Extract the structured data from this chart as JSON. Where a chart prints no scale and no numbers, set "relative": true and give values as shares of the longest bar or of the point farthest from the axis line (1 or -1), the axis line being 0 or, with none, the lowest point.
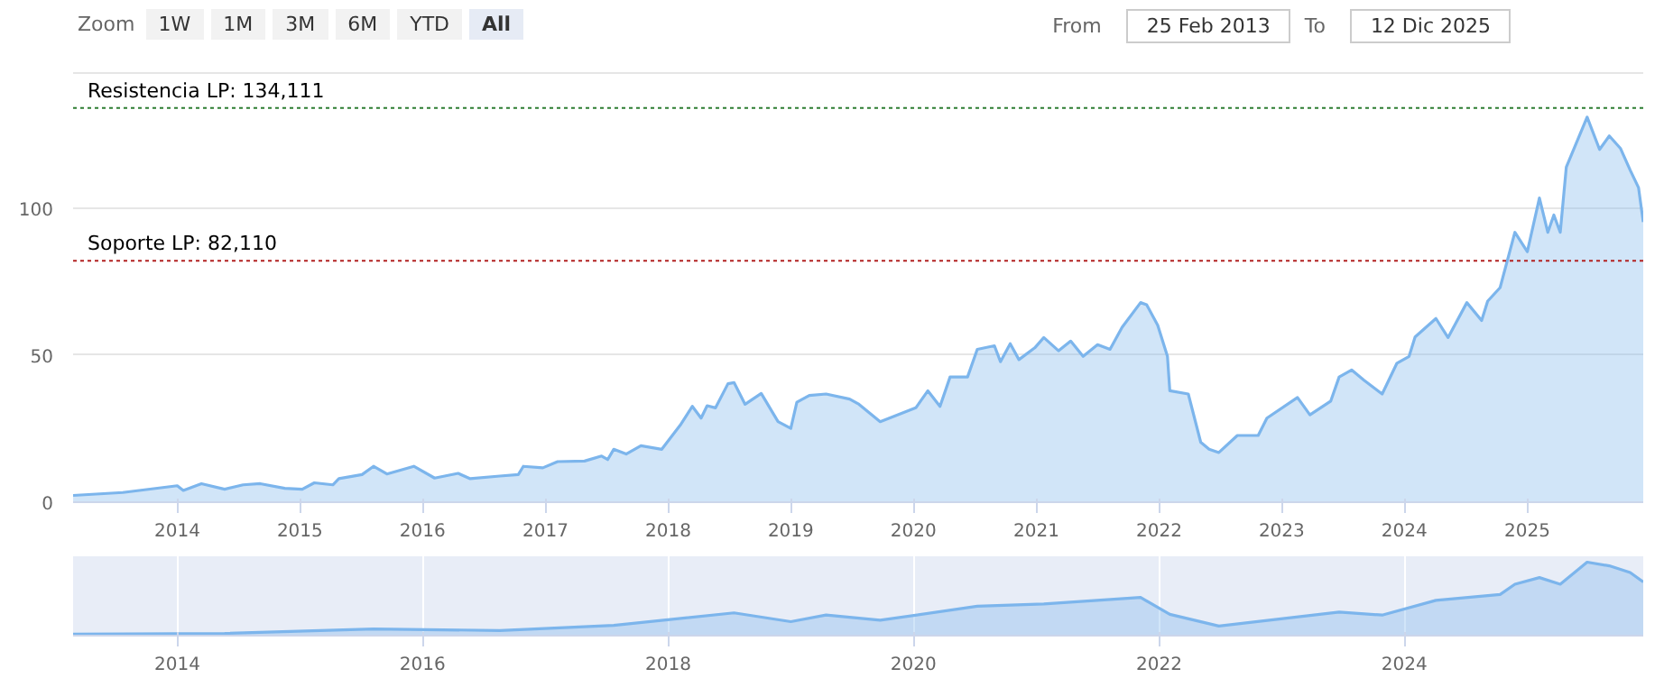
{
  "chart_data": [
    {
      "type": "area",
      "annotations": [
        "Zoom",
        "1W",
        "1M",
        "3M",
        "6M",
        "YTD",
        "All",
        "From",
        "25 Feb 2013",
        "To",
        "12 Dic 2025"
      ],
      "x": [
        "2013-02-25",
        "2013-07-23",
        "2014-01-01",
        "2014-01-19",
        "2014-03-14",
        "2014-05-22",
        "2014-07-16",
        "2014-09-05",
        "2014-11-17",
        "2015-01-08",
        "2015-02-13",
        "2015-04-09",
        "2015-04-27",
        "2015-07-05",
        "2015-08-08",
        "2015-09-17",
        "2015-12-06",
        "2016-02-06",
        "2016-04-16",
        "2016-05-22",
        "2016-08-18",
        "2016-10-12",
        "2016-10-27",
        "2016-12-24",
        "2017-02-06",
        "2017-04-27",
        "2017-06-17",
        "2017-07-05",
        "2017-07-23",
        "2017-08-29",
        "2017-10-12",
        "2017-12-13",
        "2018-02-06",
        "2018-03-14",
        "2018-04-09",
        "2018-04-27",
        "2018-05-22",
        "2018-06-28",
        "2018-07-16",
        "2018-08-18",
        "2018-10-05",
        "2018-11-24",
        "2019-01-01",
        "2019-01-19",
        "2019-02-25",
        "2019-04-16",
        "2019-06-25",
        "2019-07-23",
        "2019-09-24",
        "2020-01-08",
        "2020-02-13",
        "2020-03-20",
        "2020-04-19",
        "2020-06-10",
        "2020-07-09",
        "2020-08-29",
        "2020-09-16",
        "2020-10-15",
        "2020-11-10",
        "2020-12-27",
        "2021-01-23",
        "2021-03-08",
        "2021-04-13",
        "2021-05-20",
        "2021-07-02",
        "2021-08-08",
        "2021-09-13",
        "2021-11-07",
        "2021-11-25",
        "2021-12-28",
        "2022-01-26",
        "2022-02-02",
        "2022-03-29",
        "2022-05-05",
        "2022-05-30",
        "2022-06-28",
        "2022-08-22",
        "2022-10-23",
        "2022-11-18",
        "2023-02-17",
        "2023-03-26",
        "2023-05-27",
        "2023-06-21",
        "2023-07-28",
        "2023-09-03",
        "2023-10-27",
        "2023-12-10",
        "2024-01-15",
        "2024-02-02",
        "2024-04-04",
        "2024-05-10",
        "2024-07-05",
        "2024-08-18",
        "2024-09-05",
        "2024-10-12",
        "2024-11-25",
        "2025-01-01",
        "2025-02-06",
        "2025-03-03",
        "2025-03-21",
        "2025-04-09",
        "2025-04-27",
        "2025-06-28",
        "2025-08-04",
        "2025-09-02",
        "2025-10-05",
        "2025-11-03",
        "2025-11-28",
        "2025-12-12"
      ],
      "series": [
        {
          "color": "#7cb5ec",
          "values": [
            2.3,
            3.3,
            5.6,
            4,
            6.3,
            4.4,
            5.9,
            6.3,
            4.7,
            4.4,
            6.6,
            5.9,
            8,
            9.4,
            12.2,
            9.6,
            12.2,
            8.2,
            9.8,
            8,
            8.9,
            9.4,
            12.2,
            11.7,
            13.8,
            14,
            15.7,
            14.5,
            18,
            16.4,
            19.2,
            18,
            26.2,
            32.6,
            28.6,
            32.8,
            32.1,
            40.3,
            40.7,
            33.3,
            37,
            27.4,
            25.1,
            34,
            36.3,
            36.8,
            35.1,
            33.3,
            27.4,
            32.1,
            37.9,
            32.6,
            42.6,
            42.6,
            52,
            53.2,
            47.8,
            53.9,
            48.5,
            52.5,
            56,
            51.5,
            54.8,
            49.6,
            53.6,
            52,
            59.5,
            67.9,
            67.2,
            60.2,
            49.6,
            37.9,
            36.8,
            20.4,
            18,
            16.9,
            22.7,
            22.7,
            28.6,
            35.6,
            29.7,
            34.4,
            42.6,
            45,
            41.5,
            36.8,
            47.3,
            49.6,
            56.2,
            62.5,
            56,
            67.9,
            61.8,
            68.4,
            73,
            91.8,
            85.2,
            103.5,
            91.8,
            97.7,
            91.8,
            114,
            131,
            120,
            124.6,
            120.4,
            113,
            107,
            95.3
          ]
        }
      ],
      "xlim": [
        "2013-02-25",
        "2025-12-12"
      ],
      "ylim": [
        0,
        146
      ],
      "yticks": [
        0,
        50,
        100
      ],
      "xticks": [
        {
          "value": "2014-01-01",
          "label": "2014"
        },
        {
          "value": "2015-01-01",
          "label": "2015"
        },
        {
          "value": "2016-01-01",
          "label": "2016"
        },
        {
          "value": "2017-01-01",
          "label": "2017"
        },
        {
          "value": "2018-01-01",
          "label": "2018"
        },
        {
          "value": "2019-01-01",
          "label": "2019"
        },
        {
          "value": "2020-01-01",
          "label": "2020"
        },
        {
          "value": "2021-01-01",
          "label": "2021"
        },
        {
          "value": "2022-01-01",
          "label": "2022"
        },
        {
          "value": "2023-01-01",
          "label": "2023"
        },
        {
          "value": "2024-01-01",
          "label": "2024"
        },
        {
          "value": "2025-01-01",
          "label": "2025"
        }
      ],
      "ref_lines": [
        {
          "axis": "y",
          "value": 134.111,
          "label": "Resistencia LP: 134,111",
          "color": "#2e7d32",
          "line_style": "dashed"
        },
        {
          "axis": "y",
          "value": 82.11,
          "label": "Soporte LP: 82,110",
          "color": "#b22222",
          "line_style": "dashed"
        }
      ],
      "grid": "y"
    },
    {
      "type": "area",
      "relative": true,
      "tick_labels": "x",
      "x": [
        "2013-02-25",
        "2014-05-22",
        "2015-08-08",
        "2016-08-18",
        "2017-07-23",
        "2018-07-16",
        "2019-01-01",
        "2019-04-16",
        "2019-09-24",
        "2020-07-09",
        "2021-01-23",
        "2021-11-07",
        "2022-02-02",
        "2022-06-28",
        "2023-06-21",
        "2023-10-27",
        "2024-04-04",
        "2024-10-12",
        "2024-11-25",
        "2025-02-06",
        "2025-04-09",
        "2025-06-28",
        "2025-09-02",
        "2025-11-03",
        "2025-12-12"
      ],
      "series": [
        {
          "color": "#7cb5ec",
          "values": [
            0.02,
            0.03,
            0.09,
            0.07,
            0.14,
            0.31,
            0.19,
            0.28,
            0.21,
            0.4,
            0.43,
            0.52,
            0.29,
            0.13,
            0.32,
            0.28,
            0.48,
            0.56,
            0.7,
            0.79,
            0.7,
            1.0,
            0.95,
            0.86,
            0.73
          ]
        }
      ],
      "xlim": [
        "2013-02-25",
        "2025-12-12"
      ],
      "xticks": [
        {
          "value": "2014-01-01",
          "label": "2014"
        },
        {
          "value": "2016-01-01",
          "label": "2016"
        },
        {
          "value": "2018-01-01",
          "label": "2018"
        },
        {
          "value": "2020-01-01",
          "label": "2020"
        },
        {
          "value": "2022-01-01",
          "label": "2022"
        },
        {
          "value": "2024-01-01",
          "label": "2024"
        }
      ],
      "grid": "x"
    }
  ]
}
